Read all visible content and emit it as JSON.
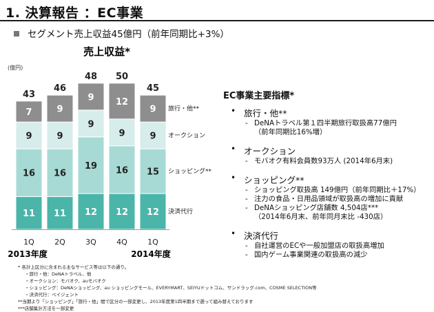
{
  "header": {
    "title": "1. 決算報告 ：EC事業",
    "subtitle": "セグメント売上収益45億円（前年同期比+3%）"
  },
  "chart_data": {
    "type": "bar",
    "stacked": true,
    "title": "売上収益*",
    "unit_label": "(億円)",
    "categories": [
      "1Q",
      "2Q",
      "3Q",
      "4Q",
      "1Q"
    ],
    "year_labels": [
      "2013年度",
      "2014年度"
    ],
    "totals": [
      43,
      46,
      48,
      50,
      45
    ],
    "series": [
      {
        "name": "決済代行",
        "values": [
          11,
          11,
          12,
          12,
          12
        ],
        "color": "#4bb5aa"
      },
      {
        "name": "ショッピング**",
        "values": [
          16,
          16,
          19,
          16,
          15
        ],
        "color": "#a8dad5"
      },
      {
        "name": "オークション",
        "values": [
          9,
          9,
          9,
          9,
          9
        ],
        "color": "#d6edeb"
      },
      {
        "name": "旅行・他**",
        "values": [
          7,
          9,
          9,
          12,
          9
        ],
        "color": "#8e8e8e"
      }
    ],
    "ylim": [
      0,
      50
    ],
    "grid": false,
    "legend": "right"
  },
  "kpi": {
    "title": "EC事業主要指標*",
    "sections": [
      {
        "label": "旅行・他**",
        "items": [
          {
            "text": "DeNAトラベル第１四半期旅行取扱高77億円",
            "sub": "（前年同期比16%増）"
          }
        ]
      },
      {
        "label": "オークション",
        "items": [
          {
            "text": "モバオク有料会員数93万人 (2014年6月末)",
            "sub": ""
          }
        ]
      },
      {
        "label": "ショッピング**",
        "items": [
          {
            "text": "ショッピング取扱高 149億円（前年同期比＋17%）",
            "sub": ""
          },
          {
            "text": "注力の食品・日用品領域が取扱高の増加に貢献",
            "sub": ""
          },
          {
            "text": "DeNAショッピング店舗数 4,504店***",
            "sub": "（2014年6月末、前年同月末比 -430店）"
          }
        ]
      },
      {
        "label": "決済代行",
        "items": [
          {
            "text": "自社運営のECや一般加盟店の取扱高増加",
            "sub": ""
          },
          {
            "text": "国内ゲーム事業関連の取扱高の減少",
            "sub": ""
          }
        ]
      }
    ]
  },
  "footnotes": [
    "* 各計上区分に含まれる主なサービス等は以下の通り。",
    "・旅行・他：DeNAトラベル、他",
    "・オークション：モバオク、auモバオク",
    "・ショッピング：DeNAショッピング、au ショッピングモール、EVERYMART、SEIYUドットコム、サンドラッグ.com、COSME SELECTION等",
    "・決済代行：ペイジェント",
    "**当期より「ショッピング」「旅行・他」間で区分の一部変更し、2013年度第1四半期まで遡って組み替えております",
    "***店舗集計方法を一部変更"
  ]
}
